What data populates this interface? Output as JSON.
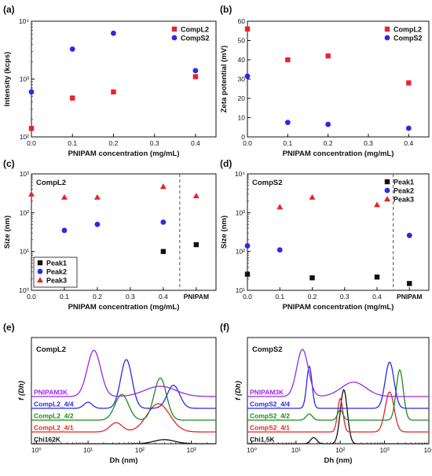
{
  "chart_data": [
    {
      "panel": "(a)",
      "type": "scatter",
      "xlabel": "PNIPAM concentration (mg/mL)",
      "ylabel": "Intensity (kcps)",
      "xlim": [
        0,
        0.45
      ],
      "ylim": [
        100,
        10000
      ],
      "yscale": "log",
      "xticks": [
        0.0,
        0.1,
        0.2,
        0.3,
        0.4
      ],
      "xtick_labels": [
        "0.0",
        "0.1",
        "0.2",
        "0.3",
        "0.4"
      ],
      "yticks": [
        100,
        1000,
        10000
      ],
      "ytick_labels": [
        "10²",
        "10³",
        "10⁴"
      ],
      "legend_position": "top-right",
      "series": [
        {
          "name": "CompL2",
          "color": "#e8232a",
          "marker": "square",
          "x": [
            0,
            0.1,
            0.2,
            0.4
          ],
          "y": [
            140,
            470,
            600,
            1100
          ]
        },
        {
          "name": "CompS2",
          "color": "#2a2ae8",
          "marker": "circle",
          "x": [
            0,
            0.1,
            0.2,
            0.4
          ],
          "y": [
            600,
            3300,
            6200,
            1400
          ]
        }
      ]
    },
    {
      "panel": "(b)",
      "type": "scatter",
      "xlabel": "PNIPAM concentration (mg/mL)",
      "ylabel": "Zeta potential (mV)",
      "xlim": [
        0,
        0.45
      ],
      "ylim": [
        0,
        60
      ],
      "xticks": [
        0.0,
        0.1,
        0.2,
        0.3,
        0.4
      ],
      "xtick_labels": [
        "0.0",
        "0.1",
        "0.2",
        "0.3",
        "0.4"
      ],
      "yticks": [
        0,
        10,
        20,
        30,
        40,
        50,
        60
      ],
      "ytick_labels": [
        "0",
        "10",
        "20",
        "30",
        "40",
        "50",
        "60"
      ],
      "legend_position": "top-right",
      "series": [
        {
          "name": "CompL2",
          "color": "#e8232a",
          "marker": "square",
          "x": [
            0,
            0.1,
            0.2,
            0.4
          ],
          "y": [
            56,
            40,
            42,
            28
          ]
        },
        {
          "name": "CompS2",
          "color": "#2a2ae8",
          "marker": "circle",
          "x": [
            0,
            0.1,
            0.2,
            0.4
          ],
          "y": [
            31.5,
            7.5,
            6.5,
            4.5
          ]
        }
      ]
    },
    {
      "panel": "(c)",
      "type": "scatter",
      "title": "CompL2",
      "xlabel": "PNIPAM concentration (mg/mL)",
      "ylabel": "Size (nm)",
      "xlim": [
        0,
        0.56
      ],
      "ylim": [
        1,
        1000
      ],
      "yscale": "log",
      "xticks": [
        0.0,
        0.1,
        0.2,
        0.3,
        0.4,
        0.5
      ],
      "xtick_labels": [
        "0.0",
        "0.1",
        "0.2",
        "0.3",
        "0.4",
        "PNIPAM"
      ],
      "yticks": [
        1,
        10,
        100,
        1000
      ],
      "ytick_labels": [
        "10⁰",
        "10¹",
        "10²",
        "10³"
      ],
      "divider_x": 0.45,
      "legend_position": "bottom-left",
      "series": [
        {
          "name": "Peak1",
          "color": "#111111",
          "marker": "square",
          "x": [
            0.4,
            0.5
          ],
          "y": [
            10,
            15
          ]
        },
        {
          "name": "Peak2",
          "color": "#2a2ae8",
          "marker": "circle",
          "x": [
            0.1,
            0.2,
            0.4
          ],
          "y": [
            35,
            50,
            57
          ]
        },
        {
          "name": "Peak3",
          "color": "#e8232a",
          "marker": "triangle",
          "x": [
            0,
            0.1,
            0.2,
            0.4,
            0.5
          ],
          "y": [
            300,
            250,
            250,
            470,
            270
          ]
        }
      ]
    },
    {
      "panel": "(d)",
      "type": "scatter",
      "title": "CompS2",
      "xlabel": "PNIPAM concentration (mg/mL)",
      "ylabel": "Size (nm)",
      "xlim": [
        0,
        0.56
      ],
      "ylim": [
        10,
        10000
      ],
      "yscale": "log",
      "xticks": [
        0.0,
        0.1,
        0.2,
        0.3,
        0.4,
        0.5
      ],
      "xtick_labels": [
        "0.0",
        "0.1",
        "0.2",
        "0.3",
        "0.4",
        "PNIPAM"
      ],
      "yticks": [
        10,
        100,
        1000,
        10000
      ],
      "ytick_labels": [
        "10¹",
        "10²",
        "10³",
        "10⁴"
      ],
      "divider_x": 0.45,
      "legend_position": "top-right",
      "series": [
        {
          "name": "Peak1",
          "color": "#111111",
          "marker": "square",
          "x": [
            0,
            0.2,
            0.4,
            0.5
          ],
          "y": [
            26,
            21,
            22,
            15
          ]
        },
        {
          "name": "Peak2",
          "color": "#2a2ae8",
          "marker": "circle",
          "x": [
            0,
            0.1,
            0.5
          ],
          "y": [
            140,
            110,
            260
          ]
        },
        {
          "name": "Peak3",
          "color": "#e8232a",
          "marker": "triangle",
          "x": [
            0.1,
            0.2,
            0.4
          ],
          "y": [
            1400,
            2500,
            1600
          ]
        }
      ]
    },
    {
      "panel": "(e)",
      "type": "line",
      "title": "CompL2",
      "xlabel": "Dh (nm)",
      "ylabel": "f (Dh)",
      "xscale": "log",
      "xlim": [
        0.8,
        3000
      ],
      "xticks": [
        1,
        10,
        100,
        1000
      ],
      "xtick_labels": [
        "10⁰",
        "10¹",
        "10²",
        "10³"
      ],
      "offset_step": 0.23,
      "series": [
        {
          "name": "Chi162K",
          "color": "#111111",
          "offset": 0,
          "peaks": [
            [
              300,
              0.2,
              0.08
            ]
          ]
        },
        {
          "name": "CompL2_4/1",
          "color": "#e8232a",
          "offset": 1,
          "peaks": [
            [
              35,
              0.12,
              0.18
            ],
            [
              230,
              0.22,
              0.55
            ]
          ]
        },
        {
          "name": "CompL2_4/2",
          "color": "#1a8c1a",
          "offset": 2,
          "peaks": [
            [
              45,
              0.13,
              0.5
            ],
            [
              250,
              0.12,
              0.82
            ]
          ]
        },
        {
          "name": "CompL2_4/4",
          "color": "#2a2ae8",
          "offset": 3,
          "peaks": [
            [
              10,
              0.08,
              0.12
            ],
            [
              55,
              0.11,
              0.95
            ],
            [
              450,
              0.12,
              0.45
            ]
          ]
        },
        {
          "name": "PNIPAM3K",
          "color": "#9a2ae0",
          "offset": 4,
          "peaks": [
            [
              13,
              0.13,
              0.9
            ],
            [
              250,
              0.3,
              0.2
            ]
          ]
        }
      ]
    },
    {
      "panel": "(f)",
      "type": "line",
      "title": "CompS2",
      "xlabel": "Dh (nm)",
      "ylabel": "f (Dh)",
      "xscale": "log",
      "xlim": [
        0.8,
        10000
      ],
      "xticks": [
        1,
        10,
        100,
        1000,
        10000
      ],
      "xtick_labels": [
        "10⁰",
        "10¹",
        "10²",
        "10³",
        "10⁴"
      ],
      "offset_step": 0.23,
      "series": [
        {
          "name": "Chi1.5K",
          "color": "#111111",
          "offset": 0,
          "peaks": [
            [
              25,
              0.07,
              0.12
            ],
            [
              120,
              0.08,
              1.05
            ]
          ]
        },
        {
          "name": "CompS2_4/1",
          "color": "#e8232a",
          "offset": 1,
          "peaks": [
            [
              100,
              0.06,
              0.65
            ],
            [
              1300,
              0.1,
              0.78
            ]
          ]
        },
        {
          "name": "CompS2_4/2",
          "color": "#1a8c1a",
          "offset": 2,
          "peaks": [
            [
              20,
              0.07,
              0.12
            ],
            [
              100,
              0.06,
              0.2
            ],
            [
              2200,
              0.08,
              0.98
            ]
          ]
        },
        {
          "name": "CompS2_4/4",
          "color": "#2a2ae8",
          "offset": 3,
          "peaks": [
            [
              20,
              0.06,
              0.82
            ],
            [
              1300,
              0.1,
              0.9
            ]
          ]
        },
        {
          "name": "PNIPAM3K",
          "color": "#9a2ae0",
          "offset": 4,
          "peaks": [
            [
              14,
              0.13,
              0.92
            ],
            [
              200,
              0.28,
              0.28
            ]
          ]
        }
      ]
    }
  ]
}
